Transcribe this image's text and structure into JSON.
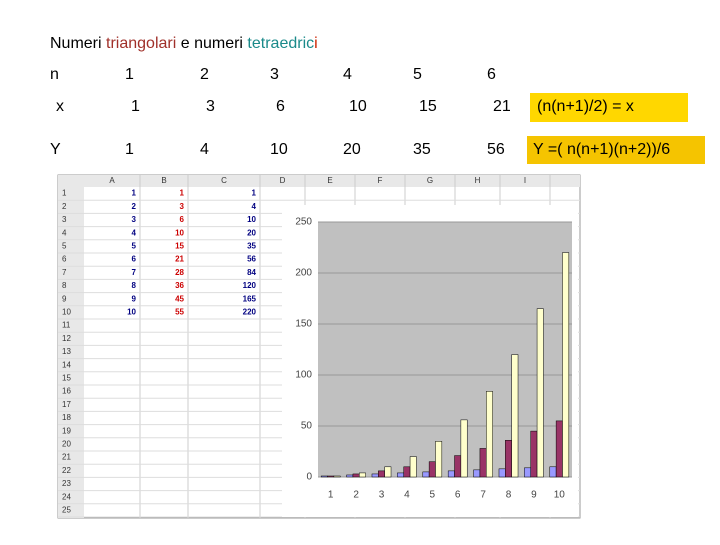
{
  "title": {
    "parts": [
      "Numeri ",
      "triangolari",
      " e numeri ",
      "tetraedric",
      "i"
    ],
    "colors": [
      "#000000",
      "#a0302a",
      "#000000",
      "#1a8a8a",
      "#cc2200"
    ]
  },
  "table": {
    "rows": [
      [
        "n",
        "1",
        "2",
        "3",
        "4",
        "5",
        "6"
      ],
      [
        "x",
        "1",
        "3",
        "6",
        "10",
        "15",
        "21"
      ],
      [
        "Y",
        "1",
        "4",
        "10",
        "20",
        "35",
        "56"
      ]
    ]
  },
  "formulas": [
    "(n(n+1)/2) = x",
    "Y =( n(n+1)(n+2))/6"
  ],
  "sheet": {
    "columns": [
      "A",
      "B",
      "C",
      "D",
      "E",
      "F",
      "G",
      "H",
      "I"
    ],
    "row_numbers": [
      1,
      2,
      3,
      4,
      5,
      6,
      7,
      8,
      9,
      10,
      11,
      12,
      13,
      14,
      15,
      16,
      17,
      18,
      19,
      20,
      21,
      22,
      23,
      24,
      25
    ],
    "cells": [
      [
        1,
        1,
        1
      ],
      [
        2,
        3,
        4
      ],
      [
        3,
        6,
        10
      ],
      [
        4,
        10,
        20
      ],
      [
        5,
        15,
        35
      ],
      [
        6,
        21,
        56
      ],
      [
        7,
        28,
        84
      ],
      [
        8,
        36,
        120
      ],
      [
        9,
        45,
        165
      ],
      [
        10,
        55,
        220
      ]
    ],
    "cell_colors": [
      "#000080",
      "#cc0000",
      "#000080"
    ]
  },
  "chart_data": {
    "type": "bar",
    "categories": [
      "1",
      "2",
      "3",
      "4",
      "5",
      "6",
      "7",
      "8",
      "9",
      "10"
    ],
    "series": [
      {
        "color": "#9999ff",
        "values": [
          1,
          2,
          3,
          4,
          5,
          6,
          7,
          8,
          9,
          10
        ]
      },
      {
        "color": "#993366",
        "values": [
          1,
          3,
          6,
          10,
          15,
          21,
          28,
          36,
          45,
          55
        ]
      },
      {
        "color": "#ffffcc",
        "values": [
          1,
          4,
          10,
          20,
          35,
          56,
          84,
          120,
          165,
          220
        ]
      }
    ],
    "ylim": [
      0,
      250
    ],
    "yticks": [
      0,
      50,
      100,
      150,
      200,
      250
    ],
    "grid": true
  }
}
